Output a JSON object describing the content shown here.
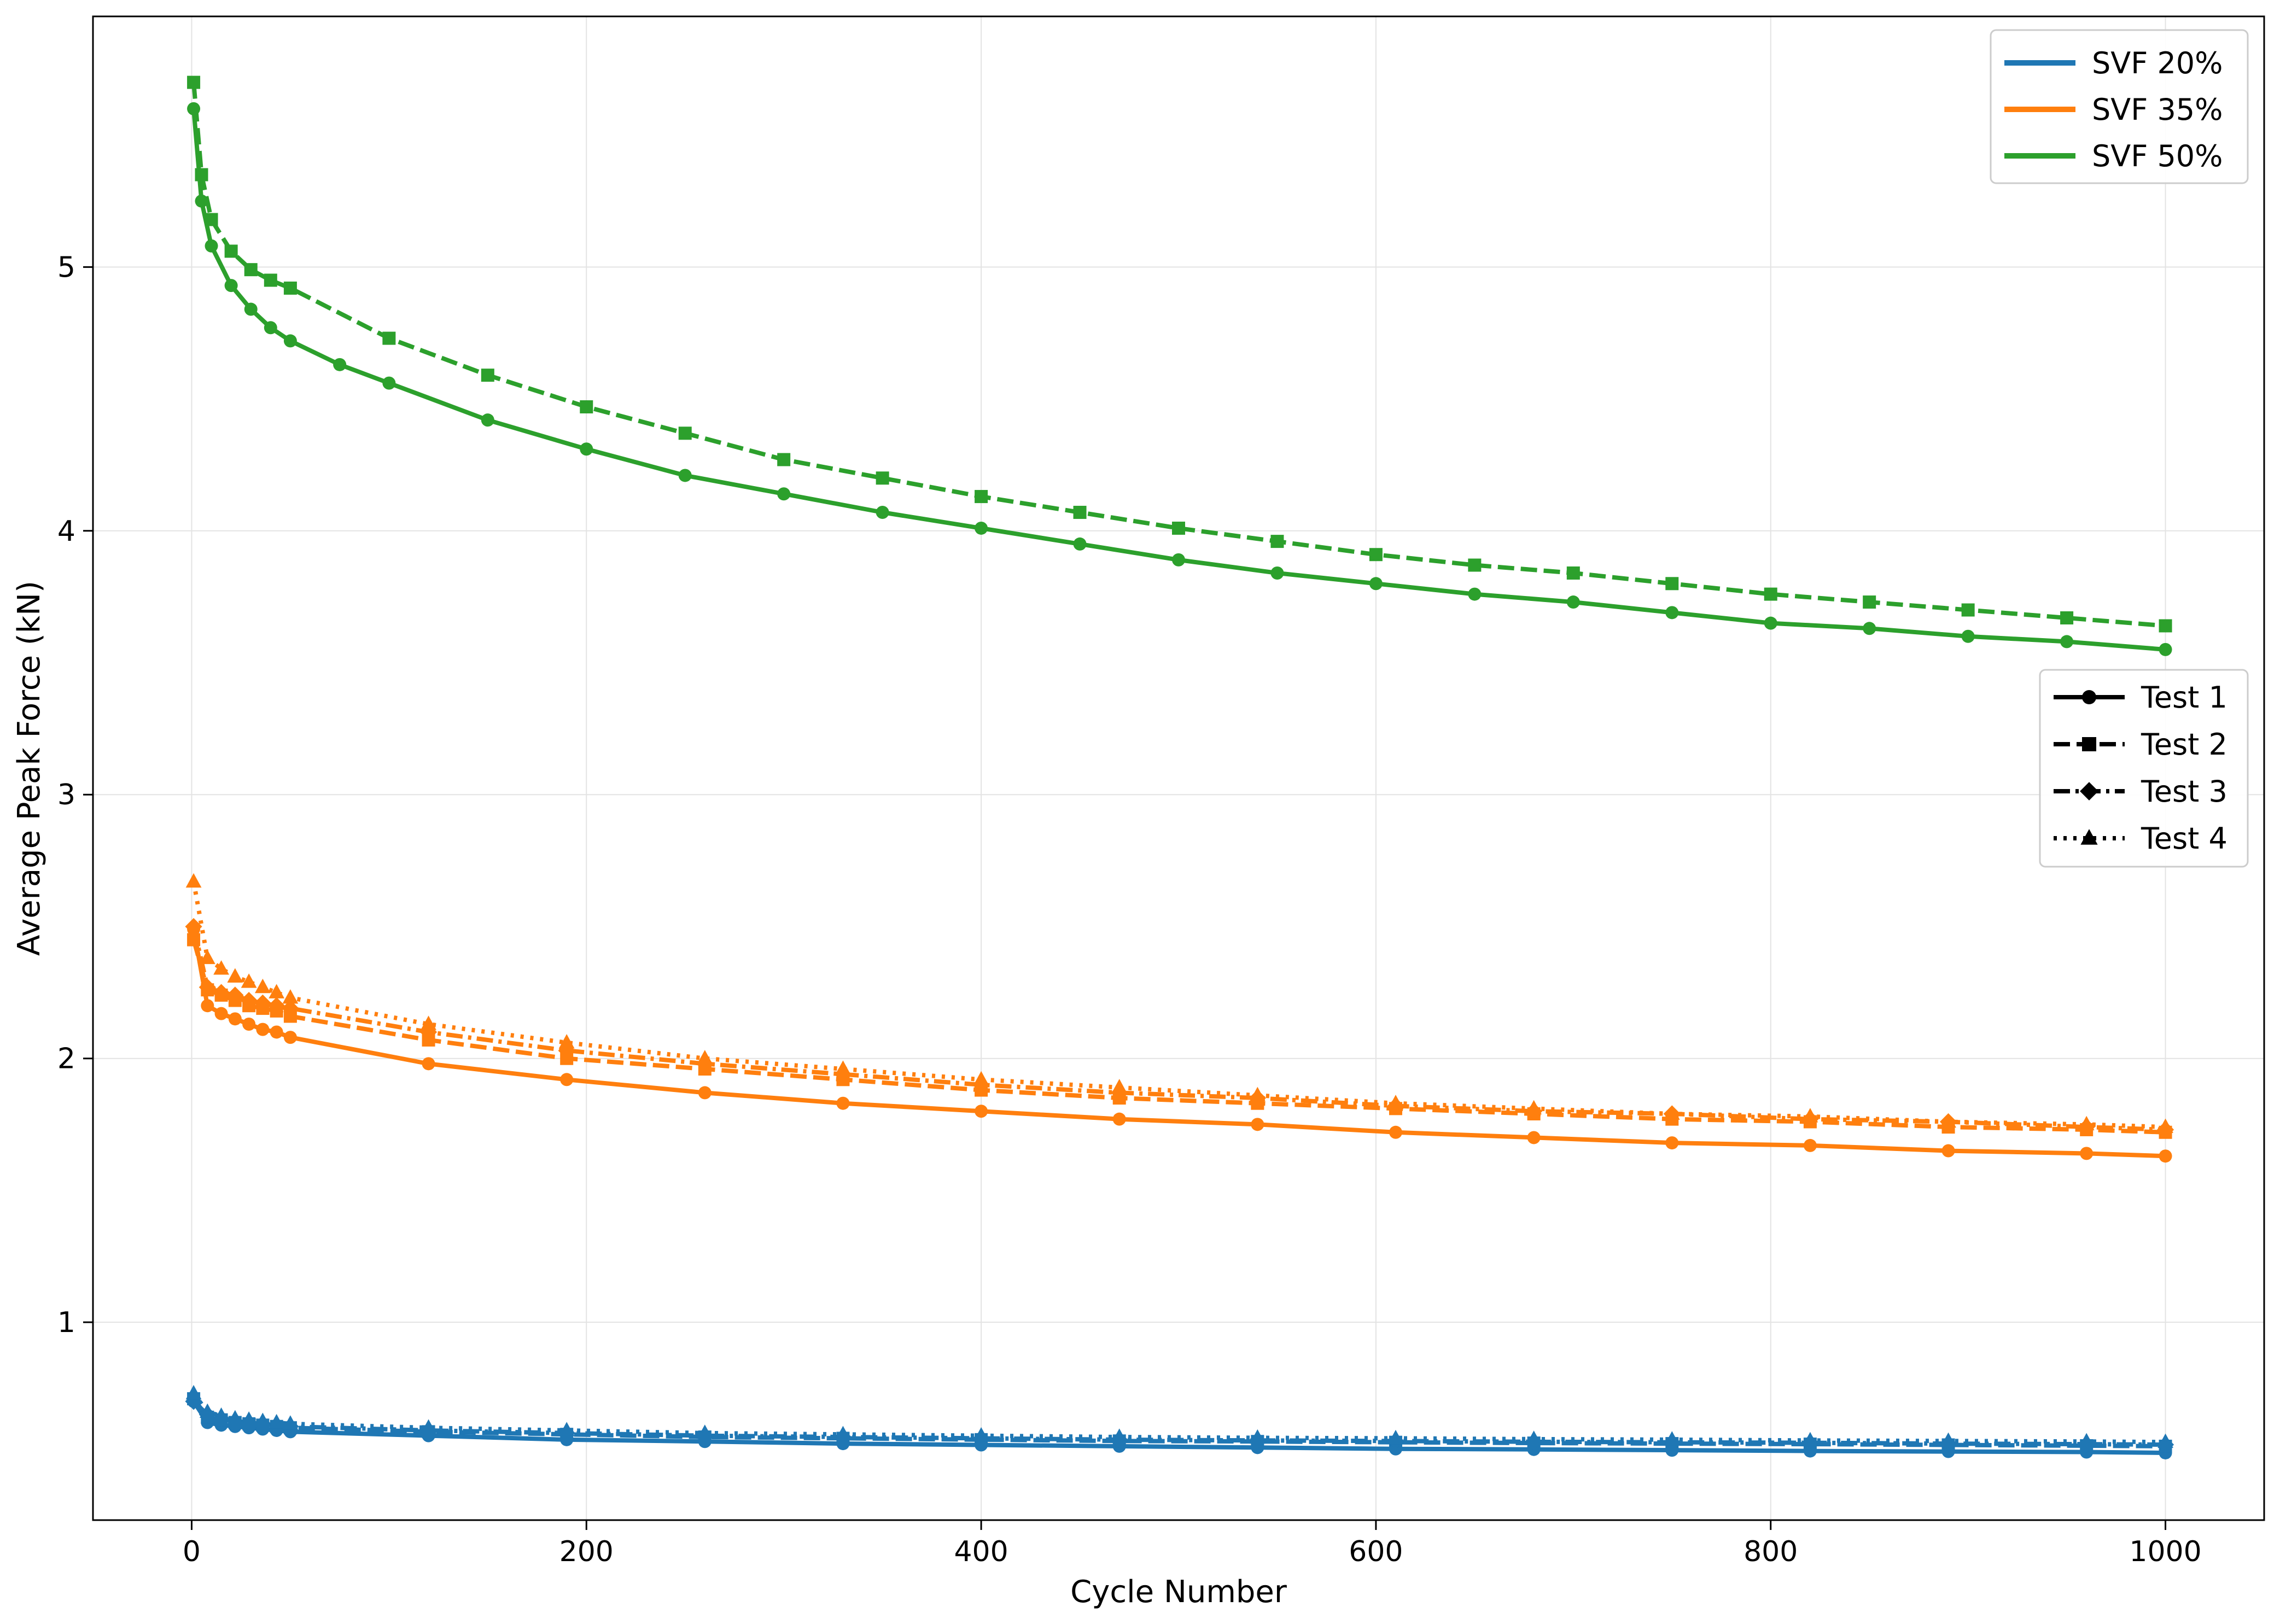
{
  "chart_data": {
    "type": "line",
    "title": "",
    "xlabel": "Cycle Number",
    "ylabel": "Average Peak Force (kN)",
    "xlim": [
      -50,
      1050
    ],
    "ylim": [
      0.25,
      5.95
    ],
    "xticks": [
      0,
      200,
      400,
      600,
      800,
      1000
    ],
    "yticks": [
      1,
      2,
      3,
      4,
      5
    ],
    "xtick_labels": [
      "0",
      "200",
      "400",
      "600",
      "800",
      "1000"
    ],
    "ytick_labels": [
      "1",
      "2",
      "3",
      "4",
      "5"
    ],
    "grid": true,
    "legend_color": {
      "placement": "top-right",
      "entries": [
        {
          "label": "SVF 20%",
          "color": "#1f77b4"
        },
        {
          "label": "SVF 35%",
          "color": "#ff7f0e"
        },
        {
          "label": "SVF 50%",
          "color": "#2ca02c"
        }
      ]
    },
    "legend_style": {
      "placement": "center-right",
      "entries": [
        {
          "label": "Test 1",
          "dash": "solid",
          "marker": "circle"
        },
        {
          "label": "Test 2",
          "dash": "dashed",
          "marker": "square"
        },
        {
          "label": "Test 3",
          "dash": "dashdot",
          "marker": "diamond"
        },
        {
          "label": "Test 4",
          "dash": "dotted",
          "marker": "triangle"
        }
      ]
    },
    "series": [
      {
        "group": "SVF 20%",
        "test": "Test 1",
        "color": "#1f77b4",
        "dash": "solid",
        "marker": "circle",
        "x": [
          1,
          8,
          15,
          22,
          29,
          36,
          43,
          50,
          120,
          190,
          260,
          330,
          400,
          470,
          540,
          610,
          680,
          750,
          820,
          890,
          960,
          1000
        ],
        "y": [
          0.7,
          0.62,
          0.61,
          0.605,
          0.6,
          0.595,
          0.59,
          0.585,
          0.57,
          0.555,
          0.548,
          0.54,
          0.535,
          0.53,
          0.525,
          0.52,
          0.518,
          0.515,
          0.512,
          0.51,
          0.508,
          0.505
        ]
      },
      {
        "group": "SVF 20%",
        "test": "Test 2",
        "color": "#1f77b4",
        "dash": "dashed",
        "marker": "square",
        "x": [
          1,
          8,
          15,
          22,
          29,
          36,
          43,
          50,
          120,
          190,
          260,
          330,
          400,
          470,
          540,
          610,
          680,
          750,
          820,
          890,
          960,
          1000
        ],
        "y": [
          0.71,
          0.64,
          0.63,
          0.62,
          0.615,
          0.61,
          0.605,
          0.6,
          0.585,
          0.575,
          0.565,
          0.56,
          0.555,
          0.55,
          0.548,
          0.545,
          0.542,
          0.54,
          0.538,
          0.535,
          0.532,
          0.53
        ]
      },
      {
        "group": "SVF 20%",
        "test": "Test 3",
        "color": "#1f77b4",
        "dash": "dashdot",
        "marker": "diamond",
        "x": [
          1,
          8,
          15,
          22,
          29,
          36,
          43,
          50,
          120,
          190,
          260,
          330,
          400,
          470,
          540,
          610,
          680,
          750,
          820,
          890,
          960,
          1000
        ],
        "y": [
          0.7,
          0.65,
          0.635,
          0.625,
          0.62,
          0.615,
          0.61,
          0.605,
          0.59,
          0.58,
          0.57,
          0.565,
          0.56,
          0.555,
          0.552,
          0.55,
          0.547,
          0.545,
          0.543,
          0.54,
          0.538,
          0.536
        ]
      },
      {
        "group": "SVF 20%",
        "test": "Test 4",
        "color": "#1f77b4",
        "dash": "dotted",
        "marker": "triangle",
        "x": [
          1,
          8,
          15,
          22,
          29,
          36,
          43,
          50,
          120,
          190,
          260,
          330,
          400,
          470,
          540,
          610,
          680,
          750,
          820,
          890,
          960,
          1000
        ],
        "y": [
          0.73,
          0.66,
          0.645,
          0.635,
          0.63,
          0.625,
          0.62,
          0.615,
          0.6,
          0.59,
          0.58,
          0.575,
          0.57,
          0.565,
          0.562,
          0.56,
          0.557,
          0.555,
          0.552,
          0.55,
          0.548,
          0.546
        ]
      },
      {
        "group": "SVF 35%",
        "test": "Test 1",
        "color": "#ff7f0e",
        "dash": "solid",
        "marker": "circle",
        "x": [
          1,
          8,
          15,
          22,
          29,
          36,
          43,
          50,
          120,
          190,
          260,
          330,
          400,
          470,
          540,
          610,
          680,
          750,
          820,
          890,
          960,
          1000
        ],
        "y": [
          2.49,
          2.2,
          2.17,
          2.15,
          2.13,
          2.11,
          2.1,
          2.08,
          1.98,
          1.92,
          1.87,
          1.83,
          1.8,
          1.77,
          1.75,
          1.72,
          1.7,
          1.68,
          1.67,
          1.65,
          1.64,
          1.63
        ]
      },
      {
        "group": "SVF 35%",
        "test": "Test 2",
        "color": "#ff7f0e",
        "dash": "dashed",
        "marker": "square",
        "x": [
          1,
          8,
          15,
          22,
          29,
          36,
          43,
          50,
          120,
          190,
          260,
          330,
          400,
          470,
          540,
          610,
          680,
          750,
          820,
          890,
          960,
          1000
        ],
        "y": [
          2.45,
          2.26,
          2.24,
          2.22,
          2.2,
          2.19,
          2.18,
          2.16,
          2.07,
          2.0,
          1.96,
          1.92,
          1.88,
          1.85,
          1.83,
          1.81,
          1.79,
          1.77,
          1.76,
          1.74,
          1.73,
          1.72
        ]
      },
      {
        "group": "SVF 35%",
        "test": "Test 3",
        "color": "#ff7f0e",
        "dash": "dashdot",
        "marker": "diamond",
        "x": [
          1,
          8,
          15,
          22,
          29,
          36,
          43,
          50,
          120,
          190,
          260,
          330,
          400,
          470,
          540,
          610,
          680,
          750,
          820,
          890,
          960,
          1000
        ],
        "y": [
          2.5,
          2.27,
          2.25,
          2.24,
          2.22,
          2.21,
          2.2,
          2.19,
          2.1,
          2.03,
          1.98,
          1.94,
          1.9,
          1.87,
          1.85,
          1.82,
          1.8,
          1.79,
          1.77,
          1.76,
          1.74,
          1.73
        ]
      },
      {
        "group": "SVF 35%",
        "test": "Test 4",
        "color": "#ff7f0e",
        "dash": "dotted",
        "marker": "triangle",
        "x": [
          1,
          8,
          15,
          22,
          29,
          36,
          43,
          50,
          120,
          190,
          260,
          330,
          400,
          470,
          540,
          610,
          680,
          750,
          820,
          890,
          960,
          1000
        ],
        "y": [
          2.67,
          2.38,
          2.34,
          2.31,
          2.29,
          2.27,
          2.25,
          2.23,
          2.13,
          2.06,
          2.0,
          1.96,
          1.92,
          1.89,
          1.86,
          1.83,
          1.81,
          1.79,
          1.78,
          1.76,
          1.75,
          1.74
        ]
      },
      {
        "group": "SVF 50%",
        "test": "Test 1",
        "color": "#2ca02c",
        "dash": "solid",
        "marker": "circle",
        "x": [
          1,
          5,
          10,
          20,
          30,
          40,
          50,
          75,
          100,
          150,
          200,
          250,
          300,
          350,
          400,
          450,
          500,
          550,
          600,
          650,
          700,
          750,
          800,
          850,
          900,
          950,
          1000
        ],
        "y": [
          5.6,
          5.25,
          5.08,
          4.93,
          4.84,
          4.77,
          4.72,
          4.63,
          4.56,
          4.42,
          4.31,
          4.21,
          4.14,
          4.07,
          4.01,
          3.95,
          3.89,
          3.84,
          3.8,
          3.76,
          3.73,
          3.69,
          3.65,
          3.63,
          3.6,
          3.58,
          3.55
        ]
      },
      {
        "group": "SVF 50%",
        "test": "Test 2",
        "color": "#2ca02c",
        "dash": "dashed",
        "marker": "square",
        "x": [
          1,
          5,
          10,
          20,
          30,
          40,
          50,
          100,
          150,
          200,
          250,
          300,
          350,
          400,
          450,
          500,
          550,
          600,
          650,
          700,
          750,
          800,
          850,
          900,
          950,
          1000
        ],
        "y": [
          5.7,
          5.35,
          5.18,
          5.06,
          4.99,
          4.95,
          4.92,
          4.73,
          4.59,
          4.47,
          4.37,
          4.27,
          4.2,
          4.13,
          4.07,
          4.01,
          3.96,
          3.91,
          3.87,
          3.84,
          3.8,
          3.76,
          3.73,
          3.7,
          3.67,
          3.64
        ]
      }
    ]
  }
}
